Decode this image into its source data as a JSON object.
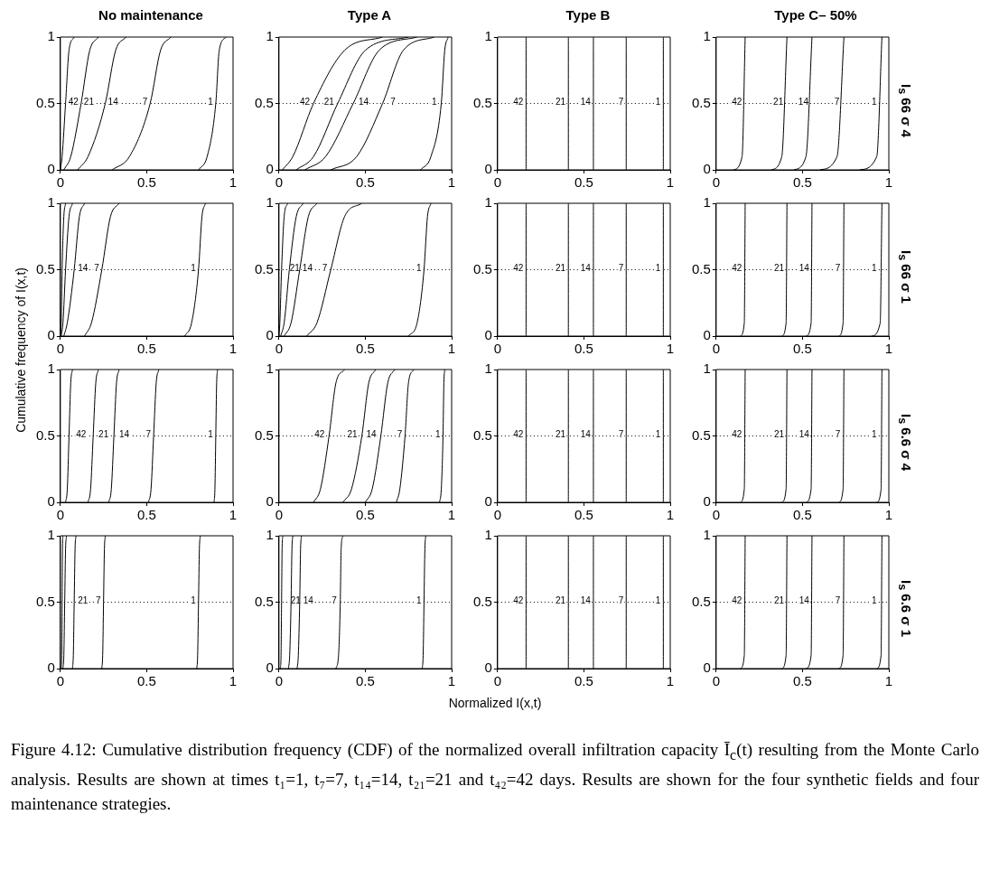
{
  "chart_data": [
    {
      "type": "line",
      "title": "No maintenance",
      "xlim": [
        0,
        1
      ],
      "ylim": [
        0,
        1
      ],
      "xticks": [
        0,
        0.5,
        1
      ],
      "yticks": [
        0,
        0.5,
        1
      ],
      "grid": false,
      "legend": false,
      "ref_lines": [
        {
          "axis": "y",
          "value": 0.5,
          "line_style": "dotted",
          "color": "#000000"
        }
      ],
      "series": [
        {
          "color": "#000000",
          "x": [
            0,
            0.01,
            0.03,
            0.05,
            0.08
          ],
          "values": [
            0,
            0.1,
            0.5,
            0.9,
            1
          ]
        },
        {
          "color": "#000000",
          "x": [
            0.02,
            0.06,
            0.12,
            0.17,
            0.22
          ],
          "values": [
            0,
            0.1,
            0.5,
            0.9,
            1
          ]
        },
        {
          "color": "#000000",
          "x": [
            0.1,
            0.16,
            0.26,
            0.32,
            0.38
          ],
          "values": [
            0,
            0.1,
            0.5,
            0.9,
            1
          ]
        },
        {
          "color": "#000000",
          "x": [
            0.3,
            0.4,
            0.52,
            0.58,
            0.64
          ],
          "values": [
            0,
            0.1,
            0.5,
            0.9,
            1
          ]
        },
        {
          "color": "#000000",
          "x": [
            0.8,
            0.85,
            0.9,
            0.92,
            0.96
          ],
          "values": [
            0,
            0.1,
            0.5,
            0.9,
            1
          ]
        }
      ],
      "annotations": [
        {
          "text": "42",
          "x": 0.075,
          "y": 0.5
        },
        {
          "text": "21",
          "x": 0.165,
          "y": 0.5
        },
        {
          "text": "14",
          "x": 0.305,
          "y": 0.5
        },
        {
          "text": "7",
          "x": 0.49,
          "y": 0.5
        },
        {
          "text": "1",
          "x": 0.87,
          "y": 0.5
        }
      ]
    },
    {
      "type": "line",
      "title": "Type A",
      "xlim": [
        0,
        1
      ],
      "ylim": [
        0,
        1
      ],
      "xticks": [
        0,
        0.5,
        1
      ],
      "yticks": [
        0,
        0.5,
        1
      ],
      "grid": false,
      "legend": false,
      "ref_lines": [
        {
          "axis": "y",
          "value": 0.5,
          "line_style": "dotted",
          "color": "#000000"
        }
      ],
      "series": [
        {
          "color": "#000000",
          "x": [
            0.02,
            0.08,
            0.2,
            0.38,
            0.6
          ],
          "values": [
            0,
            0.1,
            0.5,
            0.9,
            1
          ]
        },
        {
          "color": "#000000",
          "x": [
            0.1,
            0.2,
            0.34,
            0.5,
            0.75
          ],
          "values": [
            0,
            0.1,
            0.5,
            0.9,
            1
          ]
        },
        {
          "color": "#000000",
          "x": [
            0.15,
            0.27,
            0.43,
            0.58,
            0.8
          ],
          "values": [
            0,
            0.1,
            0.5,
            0.9,
            1
          ]
        },
        {
          "color": "#000000",
          "x": [
            0.3,
            0.45,
            0.6,
            0.72,
            0.9
          ],
          "values": [
            0,
            0.1,
            0.5,
            0.9,
            1
          ]
        },
        {
          "color": "#000000",
          "x": [
            0.82,
            0.88,
            0.94,
            0.96,
            0.98
          ],
          "values": [
            0,
            0.1,
            0.5,
            0.9,
            1
          ]
        }
      ],
      "annotations": [
        {
          "text": "42",
          "x": 0.15,
          "y": 0.5
        },
        {
          "text": "21",
          "x": 0.29,
          "y": 0.5
        },
        {
          "text": "14",
          "x": 0.49,
          "y": 0.5
        },
        {
          "text": "7",
          "x": 0.66,
          "y": 0.5
        },
        {
          "text": "1",
          "x": 0.9,
          "y": 0.5
        }
      ]
    },
    {
      "type": "line",
      "title": "Type B",
      "xlim": [
        0,
        1
      ],
      "ylim": [
        0,
        1
      ],
      "xticks": [
        0,
        0.5,
        1
      ],
      "yticks": [
        0,
        0.5,
        1
      ],
      "grid": false,
      "legend": false,
      "ref_lines": [
        {
          "axis": "y",
          "value": 0.5,
          "line_style": "dotted",
          "color": "#000000"
        }
      ],
      "series": [
        {
          "color": "#000000",
          "x": [
            0.165,
            0.165
          ],
          "values": [
            0,
            1
          ]
        },
        {
          "color": "#000000",
          "x": [
            0.41,
            0.41
          ],
          "values": [
            0,
            1
          ]
        },
        {
          "color": "#000000",
          "x": [
            0.555,
            0.555
          ],
          "values": [
            0,
            1
          ]
        },
        {
          "color": "#000000",
          "x": [
            0.745,
            0.745
          ],
          "values": [
            0,
            1
          ]
        },
        {
          "color": "#000000",
          "x": [
            0.96,
            0.96
          ],
          "values": [
            0,
            1
          ]
        }
      ],
      "annotations": [
        {
          "text": "42",
          "x": 0.12,
          "y": 0.5
        },
        {
          "text": "21",
          "x": 0.365,
          "y": 0.5
        },
        {
          "text": "14",
          "x": 0.51,
          "y": 0.5
        },
        {
          "text": "7",
          "x": 0.715,
          "y": 0.5
        },
        {
          "text": "1",
          "x": 0.93,
          "y": 0.5
        }
      ]
    },
    {
      "type": "line",
      "title": "Type C– 50%",
      "y2label": "I$_{s}$ 66 σ 4",
      "xlim": [
        0,
        1
      ],
      "ylim": [
        0,
        1
      ],
      "xticks": [
        0,
        0.5,
        1
      ],
      "yticks": [
        0,
        0.5,
        1
      ],
      "grid": false,
      "legend": false,
      "ref_lines": [
        {
          "axis": "y",
          "value": 0.5,
          "line_style": "dotted",
          "color": "#000000"
        }
      ],
      "series": [
        {
          "color": "#000000",
          "x": [
            0.1,
            0.15,
            0.168
          ],
          "values": [
            0,
            0.1,
            1
          ]
        },
        {
          "color": "#000000",
          "x": [
            0.32,
            0.38,
            0.41
          ],
          "values": [
            0,
            0.1,
            1
          ]
        },
        {
          "color": "#000000",
          "x": [
            0.45,
            0.52,
            0.555
          ],
          "values": [
            0,
            0.1,
            1
          ]
        },
        {
          "color": "#000000",
          "x": [
            0.6,
            0.7,
            0.74
          ],
          "values": [
            0,
            0.1,
            1
          ]
        },
        {
          "color": "#000000",
          "x": [
            0.83,
            0.93,
            0.96
          ],
          "values": [
            0,
            0.1,
            1
          ]
        }
      ],
      "annotations": [
        {
          "text": "42",
          "x": 0.12,
          "y": 0.5
        },
        {
          "text": "21",
          "x": 0.36,
          "y": 0.5
        },
        {
          "text": "14",
          "x": 0.505,
          "y": 0.5
        },
        {
          "text": "7",
          "x": 0.7,
          "y": 0.5
        },
        {
          "text": "1",
          "x": 0.915,
          "y": 0.5
        }
      ]
    },
    {
      "type": "line",
      "xlim": [
        0,
        1
      ],
      "ylim": [
        0,
        1
      ],
      "xticks": [
        0,
        0.5,
        1
      ],
      "yticks": [
        0,
        0.5,
        1
      ],
      "grid": false,
      "legend": false,
      "ref_lines": [
        {
          "axis": "y",
          "value": 0.5,
          "line_style": "dotted",
          "color": "#000000"
        }
      ],
      "series": [
        {
          "color": "#000000",
          "x": [
            0,
            0.005,
            0.01,
            0.02,
            0.03
          ],
          "values": [
            0,
            0.1,
            0.5,
            0.9,
            1
          ]
        },
        {
          "color": "#000000",
          "x": [
            0.005,
            0.015,
            0.03,
            0.05,
            0.07
          ],
          "values": [
            0,
            0.1,
            0.5,
            0.9,
            1
          ]
        },
        {
          "color": "#000000",
          "x": [
            0.02,
            0.04,
            0.08,
            0.11,
            0.14
          ],
          "values": [
            0,
            0.1,
            0.5,
            0.9,
            1
          ]
        },
        {
          "color": "#000000",
          "x": [
            0.14,
            0.18,
            0.24,
            0.29,
            0.34
          ],
          "values": [
            0,
            0.1,
            0.5,
            0.9,
            1
          ]
        },
        {
          "color": "#000000",
          "x": [
            0.72,
            0.76,
            0.8,
            0.82,
            0.84
          ],
          "values": [
            0,
            0.1,
            0.5,
            0.9,
            1
          ]
        }
      ],
      "annotations": [
        {
          "text": "14",
          "x": 0.13,
          "y": 0.5
        },
        {
          "text": "7",
          "x": 0.21,
          "y": 0.5
        },
        {
          "text": "1",
          "x": 0.77,
          "y": 0.5
        }
      ]
    },
    {
      "type": "line",
      "xlim": [
        0,
        1
      ],
      "ylim": [
        0,
        1
      ],
      "xticks": [
        0,
        0.5,
        1
      ],
      "yticks": [
        0,
        0.5,
        1
      ],
      "grid": false,
      "legend": false,
      "ref_lines": [
        {
          "axis": "y",
          "value": 0.5,
          "line_style": "dotted",
          "color": "#000000"
        }
      ],
      "series": [
        {
          "color": "#000000",
          "x": [
            0,
            0.005,
            0.015,
            0.03,
            0.05
          ],
          "values": [
            0,
            0.1,
            0.5,
            0.9,
            1
          ]
        },
        {
          "color": "#000000",
          "x": [
            0.01,
            0.03,
            0.06,
            0.1,
            0.14
          ],
          "values": [
            0,
            0.1,
            0.5,
            0.9,
            1
          ]
        },
        {
          "color": "#000000",
          "x": [
            0.03,
            0.07,
            0.12,
            0.17,
            0.22
          ],
          "values": [
            0,
            0.1,
            0.5,
            0.9,
            1
          ]
        },
        {
          "color": "#000000",
          "x": [
            0.16,
            0.22,
            0.3,
            0.38,
            0.48
          ],
          "values": [
            0,
            0.1,
            0.5,
            0.9,
            1
          ]
        },
        {
          "color": "#000000",
          "x": [
            0.75,
            0.8,
            0.84,
            0.86,
            0.88
          ],
          "values": [
            0,
            0.1,
            0.5,
            0.9,
            1
          ]
        }
      ],
      "annotations": [
        {
          "text": "21",
          "x": 0.091,
          "y": 0.5
        },
        {
          "text": "14",
          "x": 0.165,
          "y": 0.5
        },
        {
          "text": "7",
          "x": 0.265,
          "y": 0.5
        },
        {
          "text": "1",
          "x": 0.81,
          "y": 0.5
        }
      ]
    },
    {
      "type": "line",
      "xlim": [
        0,
        1
      ],
      "ylim": [
        0,
        1
      ],
      "xticks": [
        0,
        0.5,
        1
      ],
      "yticks": [
        0,
        0.5,
        1
      ],
      "grid": false,
      "legend": false,
      "ref_lines": [
        {
          "axis": "y",
          "value": 0.5,
          "line_style": "dotted",
          "color": "#000000"
        }
      ],
      "series": [
        {
          "color": "#000000",
          "x": [
            0.165,
            0.165
          ],
          "values": [
            0,
            1
          ]
        },
        {
          "color": "#000000",
          "x": [
            0.41,
            0.41
          ],
          "values": [
            0,
            1
          ]
        },
        {
          "color": "#000000",
          "x": [
            0.555,
            0.555
          ],
          "values": [
            0,
            1
          ]
        },
        {
          "color": "#000000",
          "x": [
            0.745,
            0.745
          ],
          "values": [
            0,
            1
          ]
        },
        {
          "color": "#000000",
          "x": [
            0.96,
            0.96
          ],
          "values": [
            0,
            1
          ]
        }
      ],
      "annotations": [
        {
          "text": "42",
          "x": 0.12,
          "y": 0.5
        },
        {
          "text": "21",
          "x": 0.365,
          "y": 0.5
        },
        {
          "text": "14",
          "x": 0.51,
          "y": 0.5
        },
        {
          "text": "7",
          "x": 0.715,
          "y": 0.5
        },
        {
          "text": "1",
          "x": 0.93,
          "y": 0.5
        }
      ]
    },
    {
      "type": "line",
      "y2label": "I$_{s}$ 66 σ 1",
      "xlim": [
        0,
        1
      ],
      "ylim": [
        0,
        1
      ],
      "xticks": [
        0,
        0.5,
        1
      ],
      "yticks": [
        0,
        0.5,
        1
      ],
      "grid": false,
      "legend": false,
      "ref_lines": [
        {
          "axis": "y",
          "value": 0.5,
          "line_style": "dotted",
          "color": "#000000"
        }
      ],
      "series": [
        {
          "color": "#000000",
          "x": [
            0.14,
            0.163,
            0.168
          ],
          "values": [
            0,
            0.1,
            1
          ]
        },
        {
          "color": "#000000",
          "x": [
            0.38,
            0.405,
            0.41
          ],
          "values": [
            0,
            0.1,
            1
          ]
        },
        {
          "color": "#000000",
          "x": [
            0.52,
            0.55,
            0.555
          ],
          "values": [
            0,
            0.1,
            1
          ]
        },
        {
          "color": "#000000",
          "x": [
            0.71,
            0.735,
            0.74
          ],
          "values": [
            0,
            0.1,
            1
          ]
        },
        {
          "color": "#000000",
          "x": [
            0.9,
            0.95,
            0.96
          ],
          "values": [
            0,
            0.1,
            1
          ]
        }
      ],
      "annotations": [
        {
          "text": "42",
          "x": 0.12,
          "y": 0.5
        },
        {
          "text": "21",
          "x": 0.365,
          "y": 0.5
        },
        {
          "text": "14",
          "x": 0.51,
          "y": 0.5
        },
        {
          "text": "7",
          "x": 0.705,
          "y": 0.5
        },
        {
          "text": "1",
          "x": 0.915,
          "y": 0.5
        }
      ]
    },
    {
      "type": "line",
      "xlim": [
        0,
        1
      ],
      "ylim": [
        0,
        1
      ],
      "xticks": [
        0,
        0.5,
        1
      ],
      "yticks": [
        0,
        0.5,
        1
      ],
      "grid": false,
      "legend": false,
      "ref_lines": [
        {
          "axis": "y",
          "value": 0.5,
          "line_style": "dotted",
          "color": "#000000"
        }
      ],
      "series": [
        {
          "color": "#000000",
          "x": [
            0.03,
            0.04,
            0.05,
            0.06,
            0.07
          ],
          "values": [
            0,
            0.1,
            0.5,
            0.9,
            1
          ]
        },
        {
          "color": "#000000",
          "x": [
            0.16,
            0.175,
            0.19,
            0.205,
            0.22
          ],
          "values": [
            0,
            0.1,
            0.5,
            0.9,
            1
          ]
        },
        {
          "color": "#000000",
          "x": [
            0.28,
            0.295,
            0.31,
            0.325,
            0.34
          ],
          "values": [
            0,
            0.1,
            0.5,
            0.9,
            1
          ]
        },
        {
          "color": "#000000",
          "x": [
            0.51,
            0.525,
            0.54,
            0.555,
            0.57
          ],
          "values": [
            0,
            0.1,
            0.5,
            0.9,
            1
          ]
        },
        {
          "color": "#000000",
          "x": [
            0.89,
            0.895,
            0.9,
            0.905,
            0.91
          ],
          "values": [
            0,
            0.1,
            0.5,
            0.9,
            1
          ]
        }
      ],
      "annotations": [
        {
          "text": "42",
          "x": 0.12,
          "y": 0.5
        },
        {
          "text": "21",
          "x": 0.25,
          "y": 0.5
        },
        {
          "text": "14",
          "x": 0.37,
          "y": 0.5
        },
        {
          "text": "7",
          "x": 0.51,
          "y": 0.5
        },
        {
          "text": "1",
          "x": 0.87,
          "y": 0.5
        }
      ]
    },
    {
      "type": "line",
      "xlim": [
        0,
        1
      ],
      "ylim": [
        0,
        1
      ],
      "xticks": [
        0,
        0.5,
        1
      ],
      "yticks": [
        0,
        0.5,
        1
      ],
      "grid": false,
      "legend": false,
      "ref_lines": [
        {
          "axis": "y",
          "value": 0.5,
          "line_style": "dotted",
          "color": "#000000"
        }
      ],
      "series": [
        {
          "color": "#000000",
          "x": [
            0.2,
            0.24,
            0.29,
            0.33,
            0.38
          ],
          "values": [
            0,
            0.1,
            0.5,
            0.9,
            1
          ]
        },
        {
          "color": "#000000",
          "x": [
            0.37,
            0.42,
            0.48,
            0.52,
            0.56
          ],
          "values": [
            0,
            0.1,
            0.5,
            0.9,
            1
          ]
        },
        {
          "color": "#000000",
          "x": [
            0.5,
            0.54,
            0.59,
            0.63,
            0.67
          ],
          "values": [
            0,
            0.1,
            0.5,
            0.9,
            1
          ]
        },
        {
          "color": "#000000",
          "x": [
            0.68,
            0.7,
            0.73,
            0.75,
            0.78
          ],
          "values": [
            0,
            0.1,
            0.5,
            0.9,
            1
          ]
        },
        {
          "color": "#000000",
          "x": [
            0.93,
            0.94,
            0.95,
            0.955,
            0.96
          ],
          "values": [
            0,
            0.1,
            0.5,
            0.9,
            1
          ]
        }
      ],
      "annotations": [
        {
          "text": "42",
          "x": 0.235,
          "y": 0.5
        },
        {
          "text": "21",
          "x": 0.425,
          "y": 0.5
        },
        {
          "text": "14",
          "x": 0.535,
          "y": 0.5
        },
        {
          "text": "7",
          "x": 0.7,
          "y": 0.5
        },
        {
          "text": "1",
          "x": 0.92,
          "y": 0.5
        }
      ]
    },
    {
      "type": "line",
      "xlim": [
        0,
        1
      ],
      "ylim": [
        0,
        1
      ],
      "xticks": [
        0,
        0.5,
        1
      ],
      "yticks": [
        0,
        0.5,
        1
      ],
      "grid": false,
      "legend": false,
      "ref_lines": [
        {
          "axis": "y",
          "value": 0.5,
          "line_style": "dotted",
          "color": "#000000"
        }
      ],
      "series": [
        {
          "color": "#000000",
          "x": [
            0.165,
            0.165
          ],
          "values": [
            0,
            1
          ]
        },
        {
          "color": "#000000",
          "x": [
            0.41,
            0.41
          ],
          "values": [
            0,
            1
          ]
        },
        {
          "color": "#000000",
          "x": [
            0.555,
            0.555
          ],
          "values": [
            0,
            1
          ]
        },
        {
          "color": "#000000",
          "x": [
            0.745,
            0.745
          ],
          "values": [
            0,
            1
          ]
        },
        {
          "color": "#000000",
          "x": [
            0.96,
            0.96
          ],
          "values": [
            0,
            1
          ]
        }
      ],
      "annotations": [
        {
          "text": "42",
          "x": 0.12,
          "y": 0.5
        },
        {
          "text": "21",
          "x": 0.365,
          "y": 0.5
        },
        {
          "text": "14",
          "x": 0.51,
          "y": 0.5
        },
        {
          "text": "7",
          "x": 0.715,
          "y": 0.5
        },
        {
          "text": "1",
          "x": 0.93,
          "y": 0.5
        }
      ]
    },
    {
      "type": "line",
      "y2label": "I$_{s}$ 6.6 σ 4",
      "xlim": [
        0,
        1
      ],
      "ylim": [
        0,
        1
      ],
      "xticks": [
        0,
        0.5,
        1
      ],
      "yticks": [
        0,
        0.5,
        1
      ],
      "grid": false,
      "legend": false,
      "ref_lines": [
        {
          "axis": "y",
          "value": 0.5,
          "line_style": "dotted",
          "color": "#000000"
        }
      ],
      "series": [
        {
          "color": "#000000",
          "x": [
            0.14,
            0.163,
            0.168
          ],
          "values": [
            0,
            0.1,
            1
          ]
        },
        {
          "color": "#000000",
          "x": [
            0.38,
            0.405,
            0.41
          ],
          "values": [
            0,
            0.1,
            1
          ]
        },
        {
          "color": "#000000",
          "x": [
            0.52,
            0.55,
            0.555
          ],
          "values": [
            0,
            0.1,
            1
          ]
        },
        {
          "color": "#000000",
          "x": [
            0.71,
            0.735,
            0.74
          ],
          "values": [
            0,
            0.1,
            1
          ]
        },
        {
          "color": "#000000",
          "x": [
            0.93,
            0.955,
            0.96
          ],
          "values": [
            0,
            0.1,
            1
          ]
        }
      ],
      "annotations": [
        {
          "text": "42",
          "x": 0.12,
          "y": 0.5
        },
        {
          "text": "21",
          "x": 0.365,
          "y": 0.5
        },
        {
          "text": "14",
          "x": 0.51,
          "y": 0.5
        },
        {
          "text": "7",
          "x": 0.705,
          "y": 0.5
        },
        {
          "text": "1",
          "x": 0.915,
          "y": 0.5
        }
      ]
    },
    {
      "type": "line",
      "xlim": [
        0,
        1
      ],
      "ylim": [
        0,
        1
      ],
      "xticks": [
        0,
        0.5,
        1
      ],
      "yticks": [
        0,
        0.5,
        1
      ],
      "grid": false,
      "legend": false,
      "ref_lines": [
        {
          "axis": "y",
          "value": 0.5,
          "line_style": "dotted",
          "color": "#000000"
        }
      ],
      "series": [
        {
          "color": "#000000",
          "x": [
            0.005,
            0.008,
            0.01,
            0.012,
            0.015
          ],
          "values": [
            0,
            0.1,
            0.5,
            0.9,
            1
          ]
        },
        {
          "color": "#000000",
          "x": [
            0.015,
            0.02,
            0.025,
            0.03,
            0.035
          ],
          "values": [
            0,
            0.1,
            0.5,
            0.9,
            1
          ]
        },
        {
          "color": "#000000",
          "x": [
            0.07,
            0.075,
            0.08,
            0.085,
            0.09
          ],
          "values": [
            0,
            0.1,
            0.5,
            0.9,
            1
          ]
        },
        {
          "color": "#000000",
          "x": [
            0.24,
            0.245,
            0.25,
            0.255,
            0.26
          ],
          "values": [
            0,
            0.1,
            0.5,
            0.9,
            1
          ]
        },
        {
          "color": "#000000",
          "x": [
            0.79,
            0.795,
            0.8,
            0.805,
            0.81
          ],
          "values": [
            0,
            0.1,
            0.5,
            0.9,
            1
          ]
        }
      ],
      "annotations": [
        {
          "text": "21",
          "x": 0.13,
          "y": 0.5
        },
        {
          "text": "7",
          "x": 0.22,
          "y": 0.5
        },
        {
          "text": "1",
          "x": 0.77,
          "y": 0.5
        }
      ]
    },
    {
      "type": "line",
      "xlim": [
        0,
        1
      ],
      "ylim": [
        0,
        1
      ],
      "xticks": [
        0,
        0.5,
        1
      ],
      "yticks": [
        0,
        0.5,
        1
      ],
      "grid": false,
      "legend": false,
      "ref_lines": [
        {
          "axis": "y",
          "value": 0.5,
          "line_style": "dotted",
          "color": "#000000"
        }
      ],
      "series": [
        {
          "color": "#000000",
          "x": [
            0.008,
            0.012,
            0.015,
            0.018,
            0.022
          ],
          "values": [
            0,
            0.1,
            0.5,
            0.9,
            1
          ]
        },
        {
          "color": "#000000",
          "x": [
            0.055,
            0.062,
            0.07,
            0.075,
            0.08
          ],
          "values": [
            0,
            0.1,
            0.5,
            0.9,
            1
          ]
        },
        {
          "color": "#000000",
          "x": [
            0.105,
            0.112,
            0.12,
            0.125,
            0.13
          ],
          "values": [
            0,
            0.1,
            0.5,
            0.9,
            1
          ]
        },
        {
          "color": "#000000",
          "x": [
            0.33,
            0.345,
            0.355,
            0.36,
            0.37
          ],
          "values": [
            0,
            0.1,
            0.5,
            0.9,
            1
          ]
        },
        {
          "color": "#000000",
          "x": [
            0.83,
            0.835,
            0.84,
            0.845,
            0.85
          ],
          "values": [
            0,
            0.1,
            0.5,
            0.9,
            1
          ]
        }
      ],
      "annotations": [
        {
          "text": "21",
          "x": 0.096,
          "y": 0.5
        },
        {
          "text": "14",
          "x": 0.17,
          "y": 0.5
        },
        {
          "text": "7",
          "x": 0.32,
          "y": 0.5
        },
        {
          "text": "1",
          "x": 0.81,
          "y": 0.5
        }
      ]
    },
    {
      "type": "line",
      "xlim": [
        0,
        1
      ],
      "ylim": [
        0,
        1
      ],
      "xticks": [
        0,
        0.5,
        1
      ],
      "yticks": [
        0,
        0.5,
        1
      ],
      "grid": false,
      "legend": false,
      "ref_lines": [
        {
          "axis": "y",
          "value": 0.5,
          "line_style": "dotted",
          "color": "#000000"
        }
      ],
      "series": [
        {
          "color": "#000000",
          "x": [
            0.165,
            0.165
          ],
          "values": [
            0,
            1
          ]
        },
        {
          "color": "#000000",
          "x": [
            0.41,
            0.41
          ],
          "values": [
            0,
            1
          ]
        },
        {
          "color": "#000000",
          "x": [
            0.555,
            0.555
          ],
          "values": [
            0,
            1
          ]
        },
        {
          "color": "#000000",
          "x": [
            0.745,
            0.745
          ],
          "values": [
            0,
            1
          ]
        },
        {
          "color": "#000000",
          "x": [
            0.96,
            0.96
          ],
          "values": [
            0,
            1
          ]
        }
      ],
      "annotations": [
        {
          "text": "42",
          "x": 0.12,
          "y": 0.5
        },
        {
          "text": "21",
          "x": 0.365,
          "y": 0.5
        },
        {
          "text": "14",
          "x": 0.51,
          "y": 0.5
        },
        {
          "text": "7",
          "x": 0.715,
          "y": 0.5
        },
        {
          "text": "1",
          "x": 0.93,
          "y": 0.5
        }
      ]
    },
    {
      "type": "line",
      "y2label": "I$_{s}$ 6.6 σ 1",
      "xlim": [
        0,
        1
      ],
      "ylim": [
        0,
        1
      ],
      "xticks": [
        0,
        0.5,
        1
      ],
      "yticks": [
        0,
        0.5,
        1
      ],
      "grid": false,
      "legend": false,
      "ref_lines": [
        {
          "axis": "y",
          "value": 0.5,
          "line_style": "dotted",
          "color": "#000000"
        }
      ],
      "series": [
        {
          "color": "#000000",
          "x": [
            0.14,
            0.163,
            0.168
          ],
          "values": [
            0,
            0.1,
            1
          ]
        },
        {
          "color": "#000000",
          "x": [
            0.38,
            0.405,
            0.41
          ],
          "values": [
            0,
            0.1,
            1
          ]
        },
        {
          "color": "#000000",
          "x": [
            0.52,
            0.55,
            0.555
          ],
          "values": [
            0,
            0.1,
            1
          ]
        },
        {
          "color": "#000000",
          "x": [
            0.71,
            0.735,
            0.74
          ],
          "values": [
            0,
            0.1,
            1
          ]
        },
        {
          "color": "#000000",
          "x": [
            0.93,
            0.955,
            0.96
          ],
          "values": [
            0,
            0.1,
            1
          ]
        }
      ],
      "annotations": [
        {
          "text": "42",
          "x": 0.12,
          "y": 0.5
        },
        {
          "text": "21",
          "x": 0.365,
          "y": 0.5
        },
        {
          "text": "14",
          "x": 0.51,
          "y": 0.5
        },
        {
          "text": "7",
          "x": 0.705,
          "y": 0.5
        },
        {
          "text": "1",
          "x": 0.915,
          "y": 0.5
        }
      ]
    },
    {
      "type": "other",
      "xlabel": "Normalized I(x,t)",
      "ylabel": "Cumulative frequency of I(x,t)",
      "annotations": [
        "Figure 4.12: Cumulative distribution frequency (CDF) of the normalized overall infiltration capacity Ī$_{c}$(t) resulting from the Monte Carlo analysis. Results are shown at times t₁=1, t₇=7, t₁₄=14, t₂₁=21 and t₄₂=42 days. Results are shown for the four synthetic fields and four maintenance strategies."
      ]
    }
  ]
}
